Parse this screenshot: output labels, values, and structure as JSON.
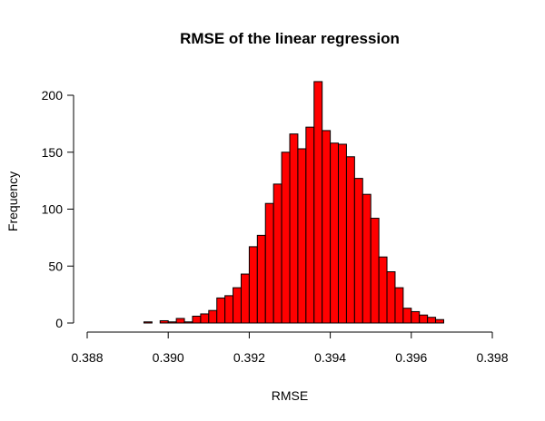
{
  "chart_data": {
    "type": "bar",
    "title": "RMSE of the linear regression",
    "xlabel": "RMSE",
    "ylabel": "Frequency",
    "xlim": [
      0.388,
      0.398
    ],
    "ylim": [
      0,
      200
    ],
    "x_ticks": [
      0.388,
      0.39,
      0.392,
      0.394,
      0.396,
      0.398
    ],
    "x_tick_labels": [
      "0.388",
      "0.390",
      "0.392",
      "0.394",
      "0.396",
      "0.398"
    ],
    "y_ticks": [
      0,
      50,
      100,
      150,
      200
    ],
    "y_tick_labels": [
      "0",
      "50",
      "100",
      "150",
      "200"
    ],
    "bin_width": 0.0002,
    "bin_starts": [
      0.3894,
      0.3896,
      0.3898,
      0.39,
      0.3902,
      0.3904,
      0.3906,
      0.3908,
      0.391,
      0.3912,
      0.3914,
      0.3916,
      0.3918,
      0.392,
      0.3922,
      0.3924,
      0.3926,
      0.3928,
      0.393,
      0.3932,
      0.3934,
      0.3936,
      0.3938,
      0.394,
      0.3942,
      0.3944,
      0.3946,
      0.3948,
      0.395,
      0.3952,
      0.3954,
      0.3956,
      0.3958,
      0.396,
      0.3962,
      0.3964,
      0.3966
    ],
    "values": [
      1,
      0,
      2,
      1,
      4,
      1,
      6,
      8,
      11,
      22,
      24,
      31,
      43,
      67,
      77,
      105,
      122,
      150,
      166,
      153,
      172,
      212,
      169,
      158,
      157,
      146,
      127,
      113,
      92,
      58,
      45,
      31,
      13,
      10,
      7,
      5,
      3
    ],
    "colors": {
      "bar_fill": "#ff0000",
      "bar_stroke": "#000000"
    }
  }
}
